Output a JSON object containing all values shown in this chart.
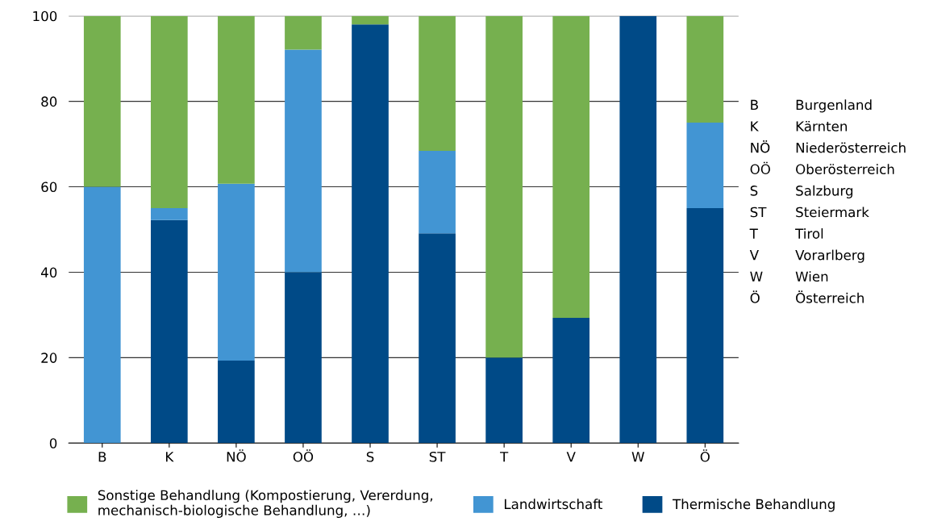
{
  "chart_data": {
    "type": "bar",
    "stacked": true,
    "categories": [
      "B",
      "K",
      "NÖ",
      "OÖ",
      "S",
      "ST",
      "T",
      "V",
      "W",
      "Ö"
    ],
    "series": [
      {
        "name": "Thermische Behandlung",
        "color": "#004a87",
        "values": [
          0,
          52.2,
          19.3,
          40,
          98,
          49.1,
          20,
          29.3,
          100,
          55
        ]
      },
      {
        "name": "Landwirtschaft",
        "color": "#4295d3",
        "values": [
          60,
          2.8,
          41.4,
          52.1,
          0,
          19.3,
          0,
          0,
          0,
          20
        ]
      },
      {
        "name": "Sonstige Behandlung (Kompostierung, Vererdung,\nmechanisch-biologische Behandlung, …)",
        "color": "#76b04f",
        "values": [
          40,
          45,
          39.3,
          7.9,
          2,
          31.6,
          80,
          70.7,
          0,
          25
        ]
      }
    ],
    "ylim": [
      0,
      100
    ],
    "yticks": [
      0,
      20,
      40,
      60,
      80,
      100
    ],
    "grid": "y",
    "legend": "bottom",
    "annotations": [
      "B Burgenland",
      "K Kärnten",
      "NÖ Niederösterreich",
      "OÖ Oberösterreich",
      "S Salzburg",
      "ST Steiermark",
      "T Tirol",
      "V Vorarlberg",
      "W Wien",
      "Ö Österreich"
    ]
  }
}
